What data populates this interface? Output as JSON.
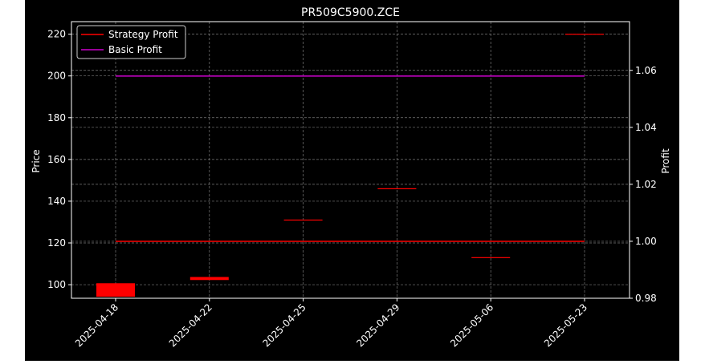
{
  "chart_data": {
    "type": "candlestick",
    "title": "PR509C5900.ZCE",
    "ylabel_left": "Price",
    "ylabel_right": "Profit",
    "categories": [
      "2025-04-18",
      "2025-04-22",
      "2025-04-25",
      "2025-04-29",
      "2025-05-06",
      "2025-05-23"
    ],
    "candles": [
      {
        "x": "2025-04-18",
        "open": 100.5,
        "close": 94.5,
        "color": "#ff0000"
      },
      {
        "x": "2025-04-22",
        "open": 103.5,
        "close": 102.5,
        "color": "#ff0000"
      },
      {
        "x": "2025-04-25",
        "open": 131,
        "close": 131,
        "color": "#ff0000"
      },
      {
        "x": "2025-04-29",
        "open": 146,
        "close": 146,
        "color": "#ff0000"
      },
      {
        "x": "2025-05-06",
        "open": 113,
        "close": 113,
        "color": "#ff0000"
      },
      {
        "x": "2025-05-23",
        "open": 220,
        "close": 220,
        "color": "#ff0000"
      }
    ],
    "series": [
      {
        "name": "Strategy Profit",
        "axis": "right",
        "color": "#ff0000",
        "x": [
          "2025-04-18",
          "2025-05-23"
        ],
        "values": [
          1.0,
          1.0
        ]
      },
      {
        "name": "Basic Profit",
        "axis": "right",
        "color": "#cc00cc",
        "x": [
          "2025-04-18",
          "2025-05-23"
        ],
        "values": [
          1.058,
          1.058
        ]
      }
    ],
    "yticks_left": [
      "100",
      "120",
      "140",
      "160",
      "180",
      "200",
      "220"
    ],
    "yticks_right": [
      "0.98",
      "1.00",
      "1.02",
      "1.04",
      "1.06"
    ],
    "ylim_left": [
      93.5,
      226
    ],
    "ylim_right": [
      0.98,
      1.0771
    ],
    "grid": true,
    "legend_position": "top-left"
  }
}
